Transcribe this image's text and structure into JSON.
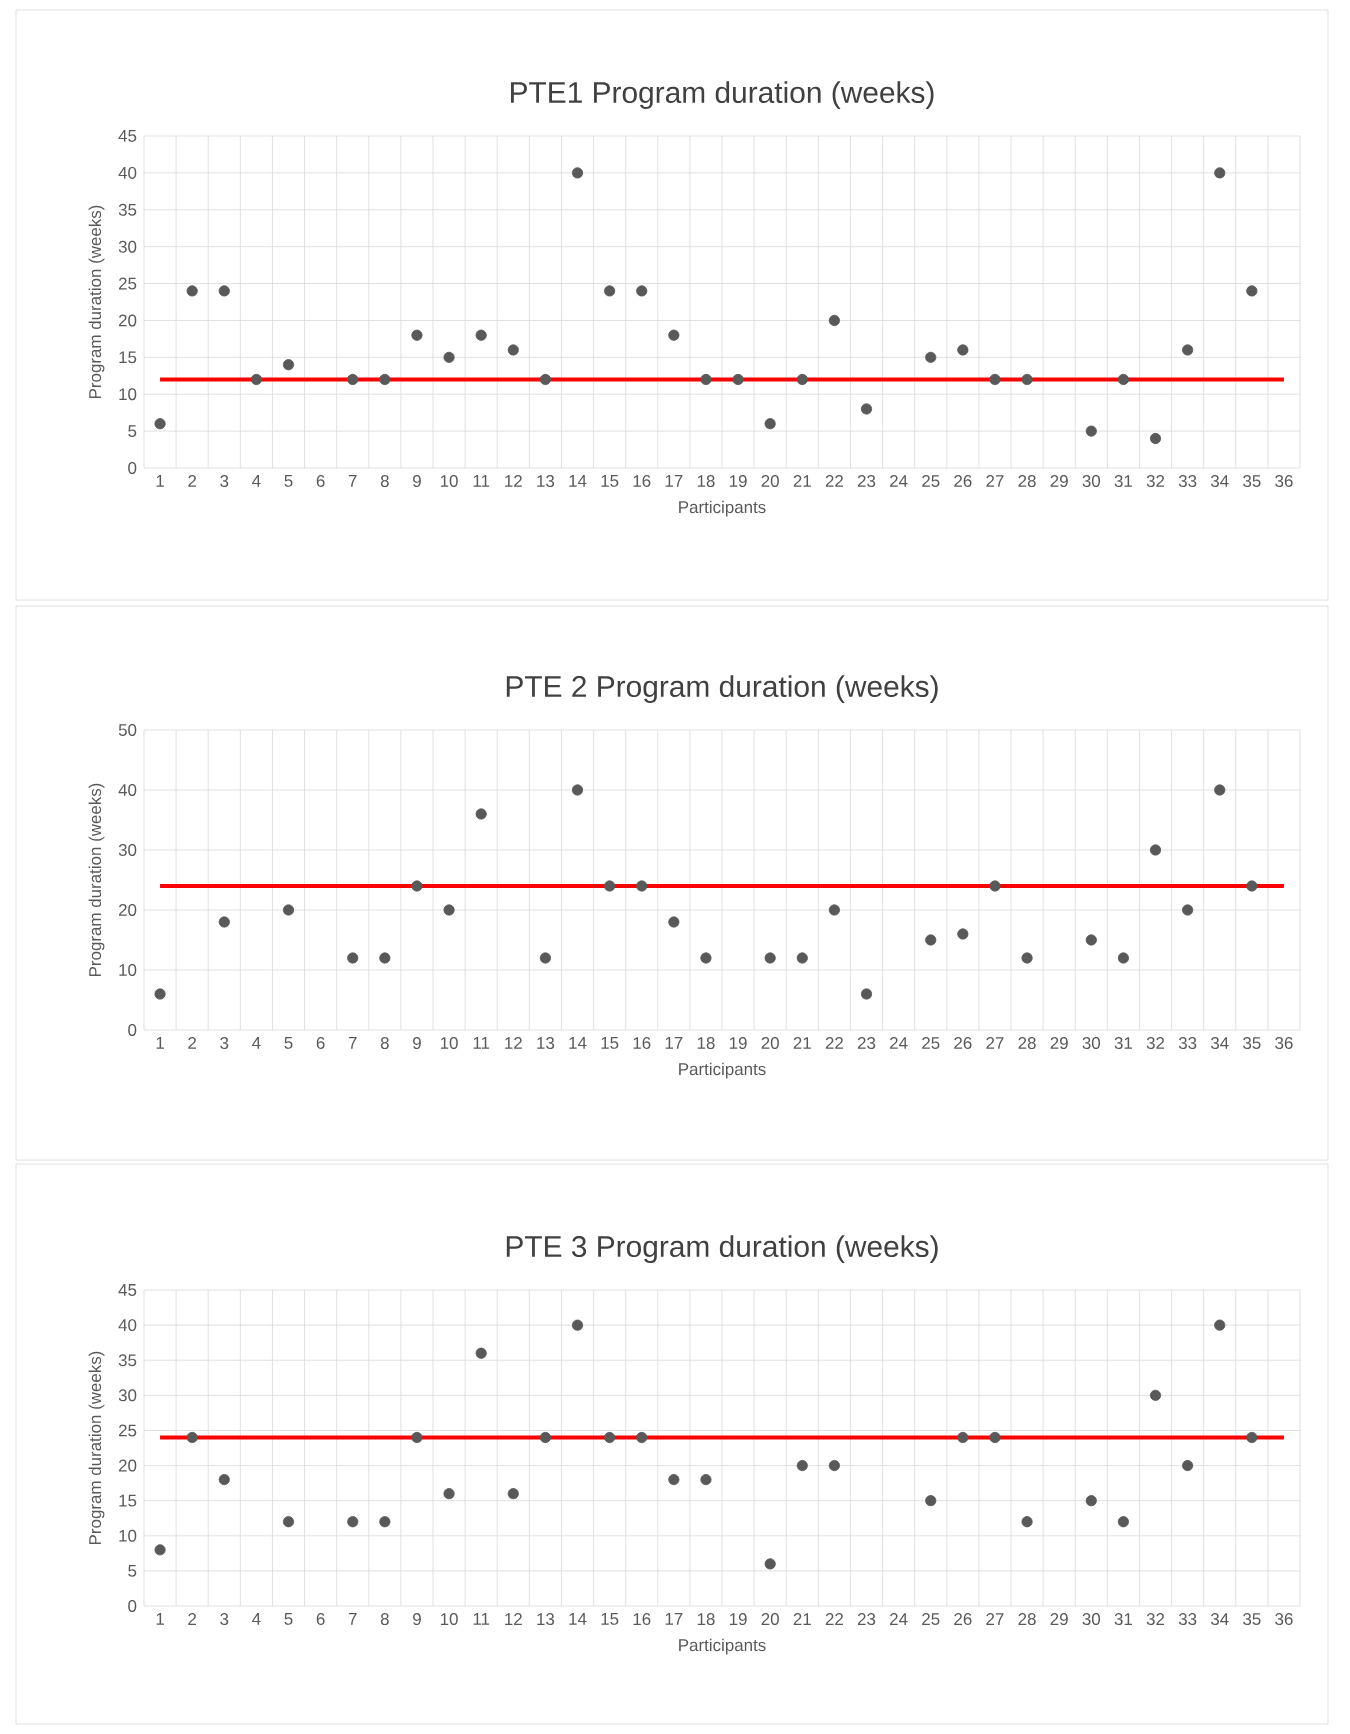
{
  "chart_data": [
    {
      "type": "scatter",
      "title": "PTE1 Program duration (weeks)",
      "xlabel": "Participants",
      "ylabel": "Program duration (weeks)",
      "categories": [
        "1",
        "2",
        "3",
        "4",
        "5",
        "6",
        "7",
        "8",
        "9",
        "10",
        "11",
        "12",
        "13",
        "14",
        "15",
        "16",
        "17",
        "18",
        "19",
        "20",
        "21",
        "22",
        "23",
        "24",
        "25",
        "26",
        "27",
        "28",
        "29",
        "30",
        "31",
        "32",
        "33",
        "34",
        "35",
        "36"
      ],
      "series": [
        {
          "color": "#595959",
          "values": [
            6,
            24,
            24,
            12,
            14,
            null,
            12,
            12,
            18,
            15,
            18,
            16,
            12,
            40,
            24,
            24,
            18,
            12,
            12,
            6,
            12,
            20,
            8,
            null,
            15,
            16,
            12,
            12,
            null,
            5,
            12,
            4,
            16,
            40,
            24,
            null
          ]
        }
      ],
      "ylim": [
        0,
        45
      ],
      "yticks": [
        0,
        5,
        10,
        15,
        20,
        25,
        30,
        35,
        40,
        45
      ],
      "grid": true,
      "marker": "circle",
      "ref_lines": [
        {
          "axis": "y",
          "value": 12,
          "color": "#ff0000"
        }
      ]
    },
    {
      "type": "scatter",
      "title": "PTE 2 Program duration (weeks)",
      "xlabel": "Participants",
      "ylabel": "Program duration (weeks)",
      "categories": [
        "1",
        "2",
        "3",
        "4",
        "5",
        "6",
        "7",
        "8",
        "9",
        "10",
        "11",
        "12",
        "13",
        "14",
        "15",
        "16",
        "17",
        "18",
        "19",
        "20",
        "21",
        "22",
        "23",
        "24",
        "25",
        "26",
        "27",
        "28",
        "29",
        "30",
        "31",
        "32",
        "33",
        "34",
        "35",
        "36"
      ],
      "series": [
        {
          "color": "#595959",
          "values": [
            6,
            null,
            18,
            null,
            20,
            null,
            12,
            12,
            24,
            20,
            36,
            null,
            12,
            40,
            24,
            24,
            18,
            12,
            null,
            12,
            12,
            20,
            6,
            null,
            15,
            16,
            24,
            12,
            null,
            15,
            12,
            30,
            20,
            40,
            24,
            null
          ]
        }
      ],
      "ylim": [
        0,
        50
      ],
      "yticks": [
        0,
        10,
        20,
        30,
        40,
        50
      ],
      "grid": true,
      "marker": "circle",
      "ref_lines": [
        {
          "axis": "y",
          "value": 24,
          "color": "#ff0000"
        }
      ]
    },
    {
      "type": "scatter",
      "title": "PTE 3 Program duration (weeks)",
      "xlabel": "Participants",
      "ylabel": "Program duration (weeks)",
      "categories": [
        "1",
        "2",
        "3",
        "4",
        "5",
        "6",
        "7",
        "8",
        "9",
        "10",
        "11",
        "12",
        "13",
        "14",
        "15",
        "16",
        "17",
        "18",
        "19",
        "20",
        "21",
        "22",
        "23",
        "24",
        "25",
        "26",
        "27",
        "28",
        "29",
        "30",
        "31",
        "32",
        "33",
        "34",
        "35",
        "36"
      ],
      "series": [
        {
          "color": "#595959",
          "values": [
            8,
            24,
            18,
            null,
            12,
            null,
            12,
            12,
            24,
            16,
            36,
            16,
            24,
            40,
            24,
            24,
            18,
            18,
            null,
            6,
            20,
            20,
            null,
            null,
            15,
            24,
            24,
            12,
            null,
            15,
            12,
            30,
            20,
            40,
            24,
            null
          ]
        }
      ],
      "ylim": [
        0,
        45
      ],
      "yticks": [
        0,
        5,
        10,
        15,
        20,
        25,
        30,
        35,
        40,
        45
      ],
      "grid": true,
      "marker": "circle",
      "ref_lines": [
        {
          "axis": "y",
          "value": 24,
          "color": "#ff0000"
        }
      ]
    }
  ]
}
